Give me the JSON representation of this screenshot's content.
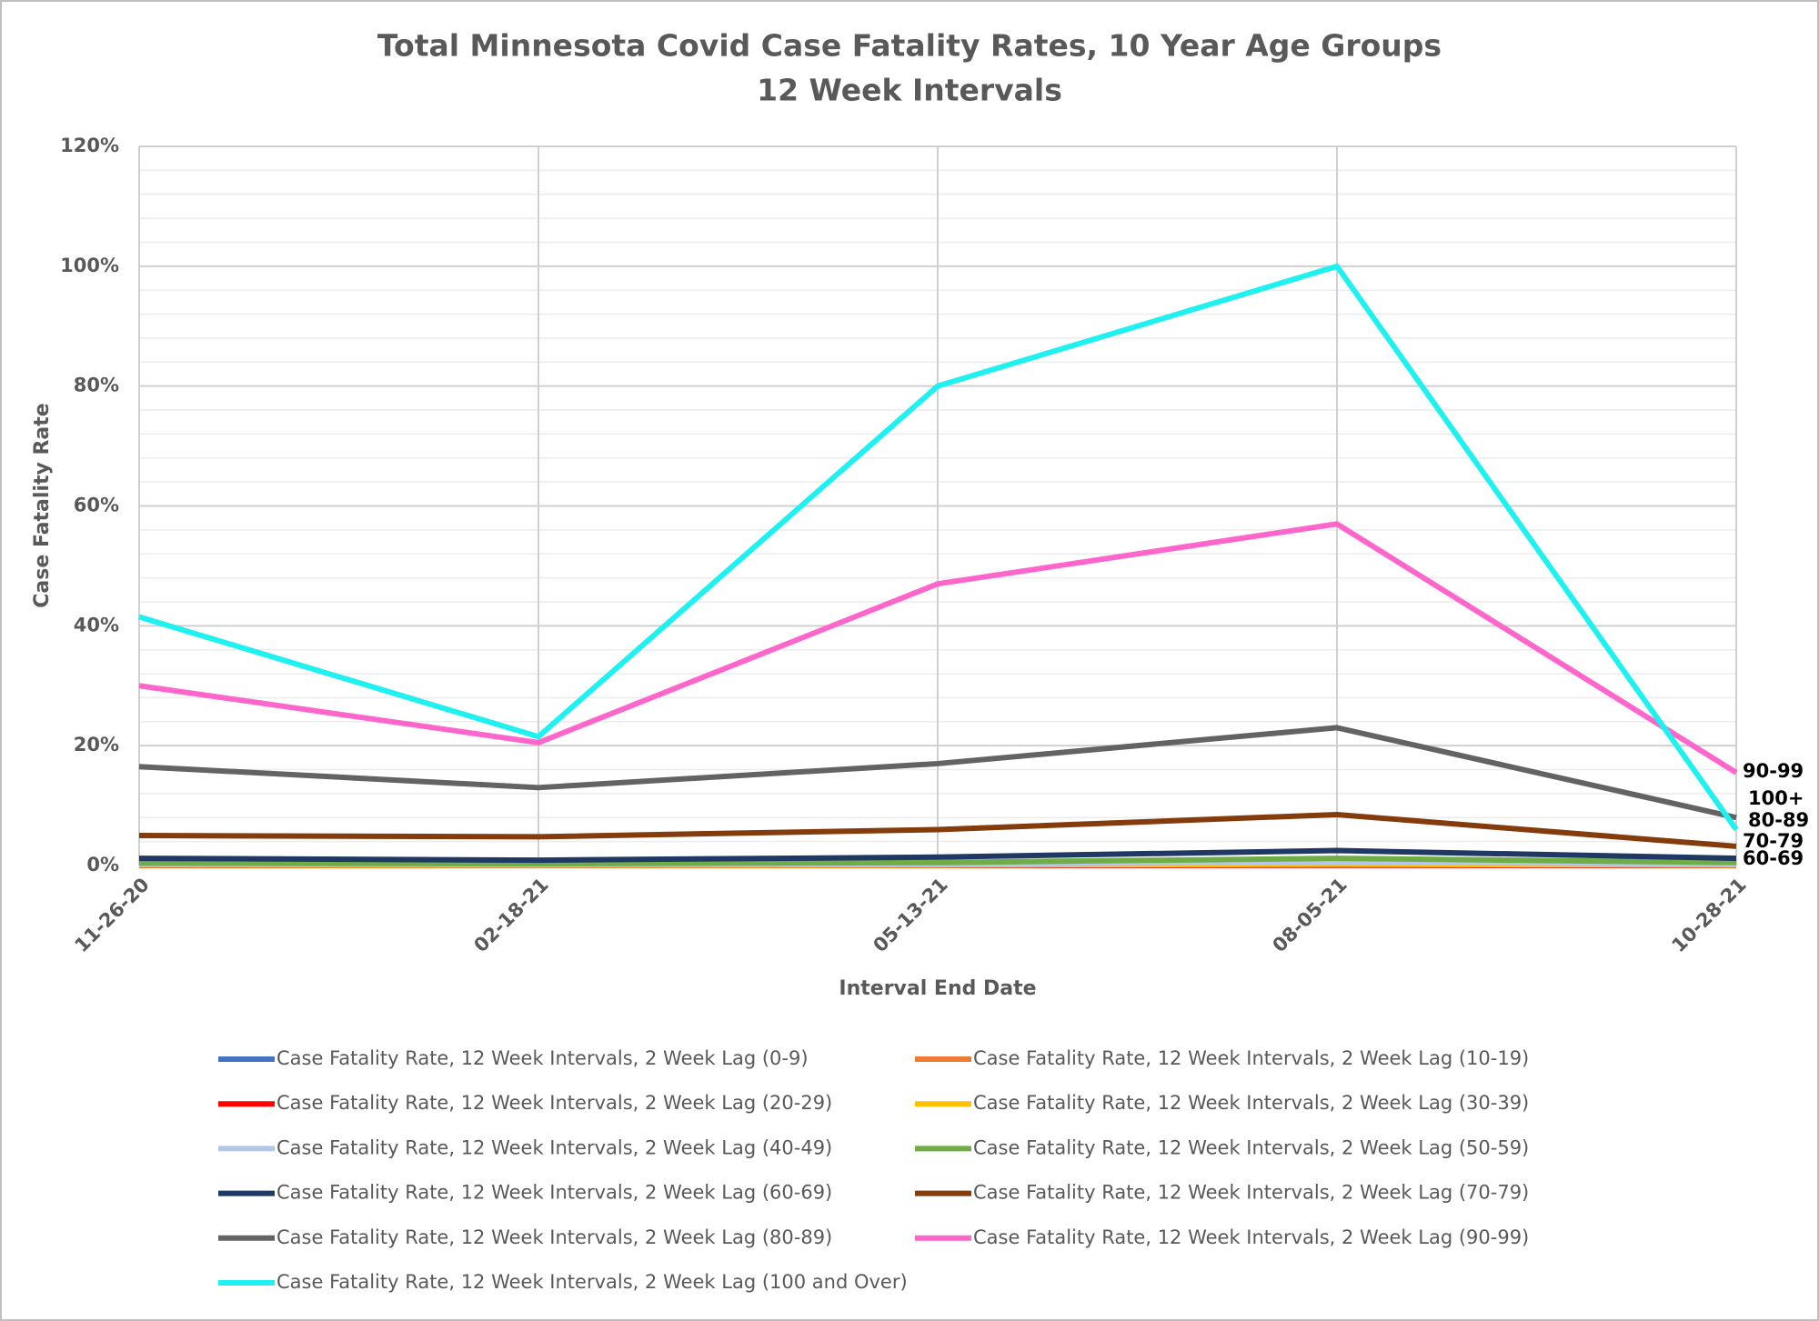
{
  "chart_data": {
    "type": "line",
    "title": "Total Minnesota Covid Case Fatality Rates, 10 Year Age Groups",
    "subtitle": "12 Week Intervals",
    "x_label": "Interval End Date",
    "y_label": "Case Fatality Rate",
    "categories": [
      "11-26-20",
      "02-18-21",
      "05-13-21",
      "08-05-21",
      "10-28-21"
    ],
    "ylim": [
      0,
      120
    ],
    "yticks": [
      {
        "value": 0,
        "label": "0%"
      },
      {
        "value": 20,
        "label": "20%"
      },
      {
        "value": 40,
        "label": "40%"
      },
      {
        "value": 60,
        "label": "60%"
      },
      {
        "value": 80,
        "label": "80%"
      },
      {
        "value": 100,
        "label": "100%"
      },
      {
        "value": 120,
        "label": "120%"
      }
    ],
    "yminorticks": [
      4,
      8,
      12,
      16,
      24,
      28,
      32,
      36,
      44,
      48,
      52,
      56,
      64,
      68,
      72,
      76,
      84,
      88,
      92,
      96,
      104,
      108,
      112,
      116
    ],
    "grid": true,
    "legend": "bottom",
    "series": [
      {
        "name": "Case Fatality Rate, 12 Week Intervals, 2 Week Lag (0-9)",
        "color": "#4472c4",
        "values": [
          0,
          0,
          0,
          0.01,
          0
        ]
      },
      {
        "name": "Case Fatality Rate, 12 Week Intervals, 2 Week Lag (10-19)",
        "color": "#ed7d31",
        "values": [
          0.01,
          0,
          0.01,
          0.02,
          0.01
        ]
      },
      {
        "name": "Case Fatality Rate, 12 Week Intervals, 2 Week Lag (20-29)",
        "color": "#ff0000",
        "values": [
          0.05,
          0.02,
          0.05,
          0.1,
          0.05
        ]
      },
      {
        "name": "Case Fatality Rate, 12 Week Intervals, 2 Week Lag (30-39)",
        "color": "#ffc000",
        "values": [
          0.1,
          0.05,
          0.1,
          0.2,
          0.1
        ]
      },
      {
        "name": "Case Fatality Rate, 12 Week Intervals, 2 Week Lag (40-49)",
        "color": "#b4c7e7",
        "values": [
          0.2,
          0.1,
          0.2,
          0.6,
          0.2
        ]
      },
      {
        "name": "Case Fatality Rate, 12 Week Intervals, 2 Week Lag (50-59)",
        "color": "#70ad47",
        "values": [
          0.4,
          0.3,
          0.5,
          1.2,
          0.5
        ]
      },
      {
        "name": "Case Fatality Rate, 12 Week Intervals, 2 Week Lag (60-69)",
        "color": "#203864",
        "values": [
          1.2,
          0.9,
          1.4,
          2.5,
          1.2
        ],
        "end_label": "60-69"
      },
      {
        "name": "Case Fatality Rate, 12 Week Intervals, 2 Week Lag (70-79)",
        "color": "#843c0c",
        "values": [
          5,
          4.8,
          6,
          8.5,
          3.2
        ],
        "end_label": "70-79"
      },
      {
        "name": "Case Fatality Rate, 12 Week Intervals, 2 Week Lag (80-89)",
        "color": "#636363",
        "values": [
          16.5,
          13,
          17,
          23,
          8
        ],
        "end_label": "80-89"
      },
      {
        "name": "Case Fatality Rate, 12 Week Intervals, 2 Week Lag (90-99)",
        "color": "#ff66cc",
        "values": [
          30,
          20.5,
          47,
          57,
          15.5
        ],
        "end_label": "90-99"
      },
      {
        "name": "Case Fatality Rate, 12 Week Intervals, 2 Week Lag (100 and Over)",
        "color": "#1ff0f0",
        "values": [
          41.5,
          21.5,
          80,
          100,
          6
        ],
        "end_label": "100+"
      }
    ]
  }
}
